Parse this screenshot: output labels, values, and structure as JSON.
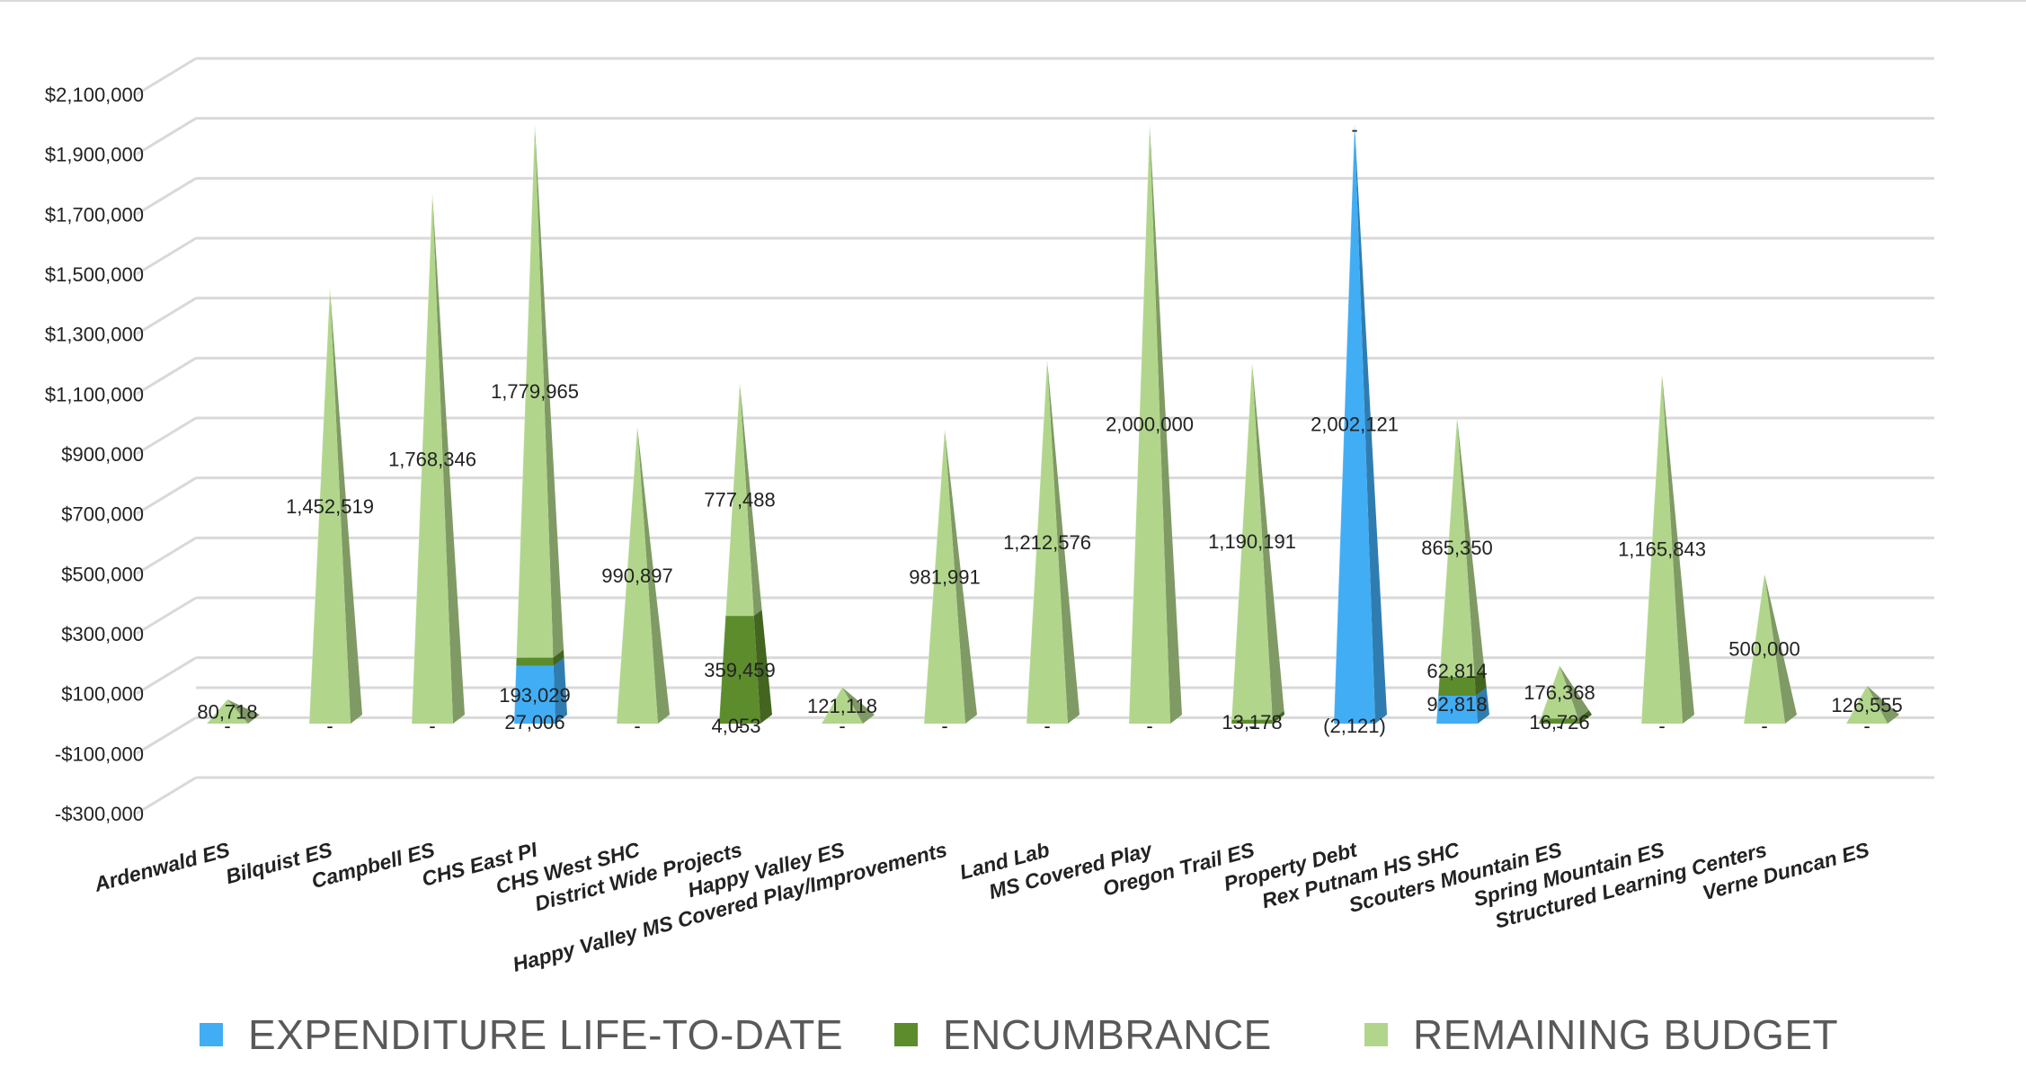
{
  "chart_data": {
    "type": "bar",
    "style": "3d-stacked-pyramid",
    "categories": [
      "Ardenwald ES",
      "Bilquist ES",
      "Campbell ES",
      "CHS East PI",
      "CHS West SHC",
      "District Wide Projects",
      "Happy Valley ES",
      "Happy Valley MS Covered Play/Improvements",
      "Land Lab",
      "MS Covered Play",
      "Oregon Trail ES",
      "Property Debt",
      "Rex Putnam HS SHC",
      "Scouters Mountain ES",
      "Spring Mountain ES",
      "Structured Learning Centers",
      "Verne Duncan ES"
    ],
    "series": [
      {
        "name": "EXPENDITURE LIFE-TO-DATE",
        "color": "#41adf5",
        "values": [
          0,
          0,
          0,
          193029,
          0,
          0,
          0,
          0,
          0,
          0,
          0,
          2002121,
          92818,
          0,
          0,
          0,
          0
        ],
        "labels": [
          "-",
          "-",
          "-",
          "193,029",
          "-",
          "-",
          "-",
          "-",
          "-",
          "-",
          "-",
          "2,002,121",
          "92,818",
          "-",
          "-",
          "-",
          "-"
        ]
      },
      {
        "name": "ENCUMBRANCE",
        "color": "#5d8c2d",
        "values": [
          0,
          0,
          0,
          27006,
          0,
          359459,
          0,
          0,
          0,
          0,
          13178,
          0,
          62814,
          16726,
          0,
          0,
          0
        ],
        "labels": [
          "",
          "",
          "",
          "27,006",
          "",
          "359,459",
          "",
          "",
          "",
          "",
          "13,178",
          "-",
          "62,814",
          "16,726",
          "",
          "",
          ""
        ]
      },
      {
        "name": "REMAINING BUDGET",
        "color": "#b1d68b",
        "values": [
          80718,
          1452519,
          1768346,
          1779965,
          990897,
          777488,
          121118,
          981991,
          1212576,
          2000000,
          1190191,
          -2121,
          865350,
          176368,
          1165843,
          500000,
          126555
        ],
        "labels": [
          "80,718",
          "1,452,519",
          "1,768,346",
          "1,779,965",
          "990,897",
          "777,488",
          "121,118",
          "981,991",
          "1,212,576",
          "2,000,000",
          "1,190,191",
          "(2,121)",
          "865,350",
          "176,368",
          "1,165,843",
          "500,000",
          "126,555"
        ]
      }
    ],
    "extra_labels": [
      {
        "category_index": 5,
        "text": "4,053"
      }
    ],
    "ylim": [
      -300000,
      2100000
    ],
    "yticks": [
      -300000,
      -100000,
      100000,
      300000,
      500000,
      700000,
      900000,
      1100000,
      1300000,
      1500000,
      1700000,
      1900000,
      2100000
    ],
    "ytick_labels": [
      "-$300,000",
      "-$100,000",
      "$100,000",
      "$300,000",
      "$500,000",
      "$700,000",
      "$900,000",
      "$1,100,000",
      "$1,300,000",
      "$1,500,000",
      "$1,700,000",
      "$1,900,000",
      "$2,100,000"
    ],
    "grid": true,
    "legend_position": "bottom",
    "title": "",
    "xlabel": "",
    "ylabel": ""
  }
}
